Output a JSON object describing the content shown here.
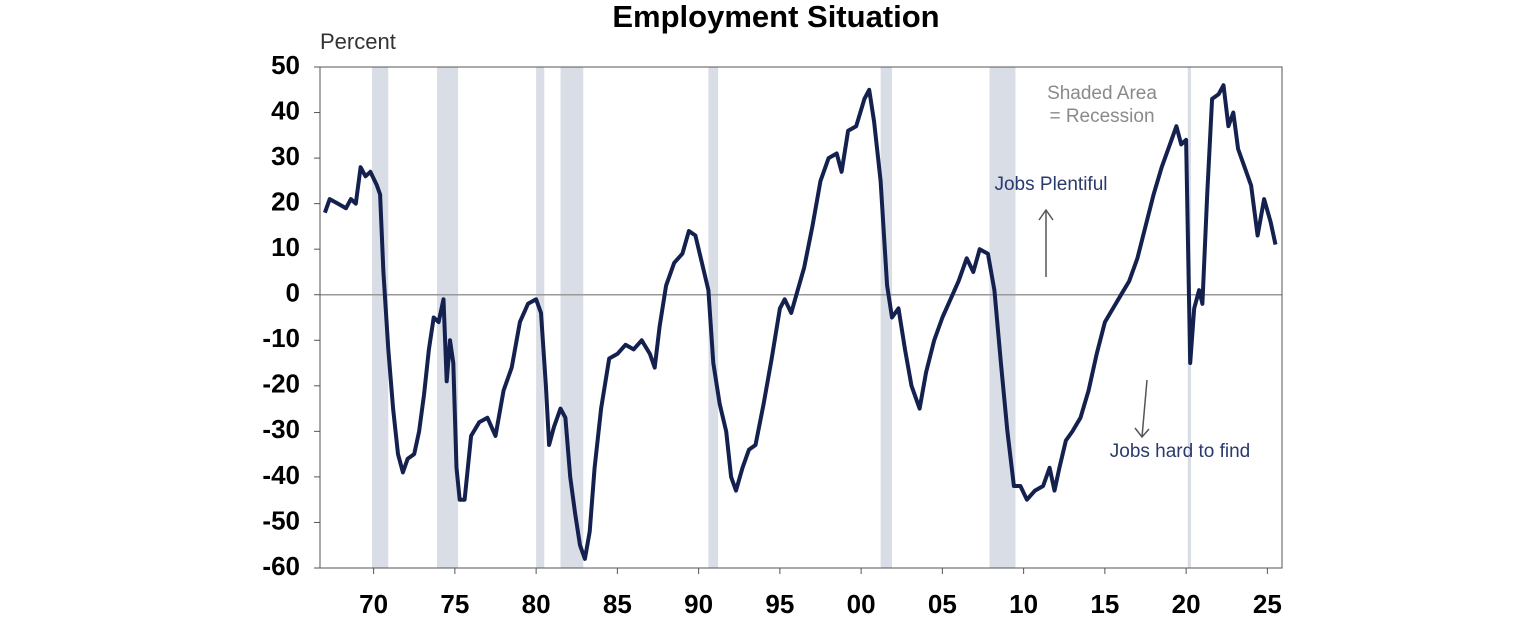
{
  "chart_data": {
    "type": "line",
    "title": "Employment Situation",
    "y_label": "Percent",
    "annotations": [
      "Shaded Area",
      "= Recession",
      "Jobs Plentiful",
      "Jobs hard to find"
    ],
    "color": "#14214f",
    "recession_color": "#d9dde6",
    "xlim": [
      1966.7,
      2025.9
    ],
    "ylim": [
      -60,
      50
    ],
    "yticks": [
      50,
      40,
      30,
      20,
      10,
      0,
      -10,
      -20,
      -30,
      -40,
      -50,
      -60
    ],
    "xticks": [
      {
        "value": 1970,
        "label": "70"
      },
      {
        "value": 1975,
        "label": "75"
      },
      {
        "value": 1980,
        "label": "80"
      },
      {
        "value": 1985,
        "label": "85"
      },
      {
        "value": 1990,
        "label": "90"
      },
      {
        "value": 1995,
        "label": "95"
      },
      {
        "value": 2000,
        "label": "00"
      },
      {
        "value": 2005,
        "label": "05"
      },
      {
        "value": 2010,
        "label": "10"
      },
      {
        "value": 2015,
        "label": "15"
      },
      {
        "value": 2020,
        "label": "20"
      },
      {
        "value": 2025,
        "label": "25"
      }
    ],
    "recessions": [
      [
        1969.9,
        1970.9
      ],
      [
        1973.9,
        1975.2
      ],
      [
        1980.0,
        1980.5
      ],
      [
        1981.5,
        1982.9
      ],
      [
        1990.6,
        1991.2
      ],
      [
        2001.2,
        2001.9
      ],
      [
        2007.9,
        2009.5
      ],
      [
        2020.1,
        2020.3
      ]
    ],
    "x": [
      1967.0,
      1967.3,
      1967.8,
      1968.3,
      1968.6,
      1968.9,
      1969.2,
      1969.5,
      1969.8,
      1970.2,
      1970.4,
      1970.6,
      1970.9,
      1971.2,
      1971.5,
      1971.8,
      1972.1,
      1972.5,
      1972.8,
      1973.1,
      1973.4,
      1973.7,
      1974.0,
      1974.3,
      1974.5,
      1974.7,
      1974.9,
      1975.1,
      1975.3,
      1975.6,
      1976.0,
      1976.5,
      1977.0,
      1977.5,
      1978.0,
      1978.5,
      1979.0,
      1979.5,
      1980.0,
      1980.3,
      1980.6,
      1980.8,
      1981.1,
      1981.5,
      1981.8,
      1982.1,
      1982.4,
      1982.7,
      1983.0,
      1983.3,
      1983.6,
      1984.0,
      1984.5,
      1985.0,
      1985.5,
      1986.0,
      1986.5,
      1987.0,
      1987.3,
      1987.6,
      1988.0,
      1988.5,
      1989.0,
      1989.4,
      1989.8,
      1990.2,
      1990.6,
      1990.9,
      1991.3,
      1991.7,
      1992.0,
      1992.3,
      1992.7,
      1993.1,
      1993.5,
      1994.0,
      1994.5,
      1995.0,
      1995.3,
      1995.7,
      1996.1,
      1996.5,
      1997.0,
      1997.5,
      1998.0,
      1998.5,
      1998.8,
      1999.2,
      1999.7,
      2000.2,
      2000.5,
      2000.8,
      2001.2,
      2001.6,
      2001.9,
      2002.3,
      2002.7,
      2003.1,
      2003.6,
      2004.0,
      2004.5,
      2005.0,
      2005.5,
      2006.0,
      2006.5,
      2006.9,
      2007.3,
      2007.8,
      2008.2,
      2008.6,
      2009.0,
      2009.4,
      2009.8,
      2010.2,
      2010.7,
      2011.2,
      2011.6,
      2011.9,
      2012.2,
      2012.6,
      2013.0,
      2013.5,
      2014.0,
      2014.5,
      2015.0,
      2015.5,
      2016.0,
      2016.5,
      2017.0,
      2017.5,
      2018.0,
      2018.5,
      2019.0,
      2019.4,
      2019.7,
      2020.0,
      2020.25,
      2020.5,
      2020.8,
      2021.0,
      2021.3,
      2021.6,
      2022.0,
      2022.3,
      2022.6,
      2022.9,
      2023.2,
      2023.6,
      2024.0,
      2024.4,
      2024.8,
      2025.2,
      2025.5
    ],
    "values": [
      18,
      21,
      20,
      19,
      21,
      20,
      28,
      26,
      27,
      24,
      22,
      5,
      -12,
      -25,
      -35,
      -39,
      -36,
      -35,
      -30,
      -22,
      -12,
      -5,
      -6,
      -1,
      -19,
      -10,
      -15,
      -38,
      -45,
      -45,
      -31,
      -28,
      -27,
      -31,
      -21,
      -16,
      -6,
      -2,
      -1,
      -4,
      -20,
      -33,
      -29,
      -25,
      -27,
      -40,
      -48,
      -55,
      -58,
      -52,
      -38,
      -25,
      -14,
      -13,
      -11,
      -12,
      -10,
      -13,
      -16,
      -7,
      2,
      7,
      9,
      14,
      13,
      7,
      1,
      -15,
      -24,
      -30,
      -40,
      -43,
      -38,
      -34,
      -33,
      -24,
      -14,
      -3,
      -1,
      -4,
      1,
      6,
      15,
      25,
      30,
      31,
      27,
      36,
      37,
      43,
      45,
      38,
      25,
      2,
      -5,
      -3,
      -12,
      -20,
      -25,
      -17,
      -10,
      -5,
      -1,
      3,
      8,
      5,
      10,
      9,
      1,
      -15,
      -30,
      -42,
      -42,
      -45,
      -43,
      -42,
      -38,
      -43,
      -38,
      -32,
      -30,
      -27,
      -21,
      -13,
      -6,
      -3,
      0,
      3,
      8,
      15,
      22,
      28,
      33,
      37,
      33,
      34,
      -15,
      -3,
      1,
      -2,
      22,
      43,
      44,
      46,
      37,
      40,
      32,
      28,
      24,
      13,
      21,
      16,
      11
    ]
  }
}
